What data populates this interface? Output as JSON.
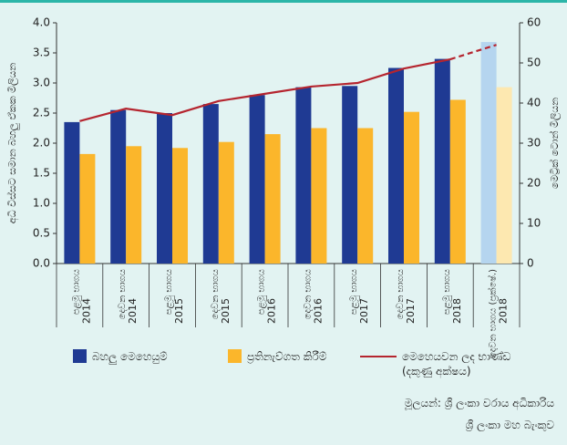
{
  "chart_data": {
    "type": "bar_line",
    "y_label": "අධි විස්සට සමාන බහලු ඒකක මිලියන",
    "y2_label": "මෙට්‍රික් ටොන් මිලියන",
    "categories": [
      "පළමු භාගය",
      "දෙවන භාගය",
      "පළමු භාගය",
      "දෙවන භාගය",
      "පළමු භාගය",
      "දෙවන භාගය",
      "පළමු භාගය",
      "දෙවන භාගය",
      "පළමු භාගය",
      "දෙවන භාගය (ප්‍රක්ෂේ.)"
    ],
    "category_years": [
      "2014",
      "2014",
      "2015",
      "2015",
      "2016",
      "2016",
      "2017",
      "2017",
      "2018",
      "2018"
    ],
    "projected": [
      false,
      false,
      false,
      false,
      false,
      false,
      false,
      false,
      false,
      true
    ],
    "series": [
      {
        "name": "බහලු මෙහෙයුම්",
        "kind": "bar",
        "color": "#1f3a93",
        "projected_color": "#b5d5ef",
        "values": [
          2.35,
          2.55,
          2.5,
          2.65,
          2.8,
          2.93,
          2.95,
          3.25,
          3.4,
          3.68
        ]
      },
      {
        "name": "ප්‍රතිනැව්ගත කිරීම්",
        "kind": "bar",
        "color": "#fbb62b",
        "projected_color": "#fde8b0",
        "values": [
          1.82,
          1.95,
          1.92,
          2.02,
          2.15,
          2.25,
          2.25,
          2.52,
          2.72,
          2.93
        ]
      },
      {
        "name": "මෙහෙයවන ලද භාණ්ඩ (දකුණු අක්ෂය)",
        "kind": "line",
        "axis": "y2",
        "color": "#b5252f",
        "values": [
          35.5,
          38.6,
          37.0,
          40.5,
          42.3,
          44.1,
          45.0,
          48.6,
          50.9,
          54.5
        ]
      }
    ],
    "ylim": [
      0,
      4
    ],
    "yticks": [
      {
        "value": 0,
        "label": "0.0"
      },
      {
        "value": 0.5,
        "label": "0.5"
      },
      {
        "value": 1,
        "label": "1.0"
      },
      {
        "value": 1.5,
        "label": "1.5"
      },
      {
        "value": 2,
        "label": "2.0"
      },
      {
        "value": 2.5,
        "label": "2.5"
      },
      {
        "value": 3,
        "label": "3.0"
      },
      {
        "value": 3.5,
        "label": "3.5"
      },
      {
        "value": 4,
        "label": "4.0"
      }
    ],
    "y2lim": [
      0,
      60
    ],
    "y2ticks": [
      0,
      10,
      20,
      30,
      40,
      50,
      60
    ],
    "source": [
      "මූලයන්: ශ්‍රී ලංකා වරාය අධිකාරිය",
      "ශ්‍රී ලංකා මහ බැංකුව"
    ]
  }
}
